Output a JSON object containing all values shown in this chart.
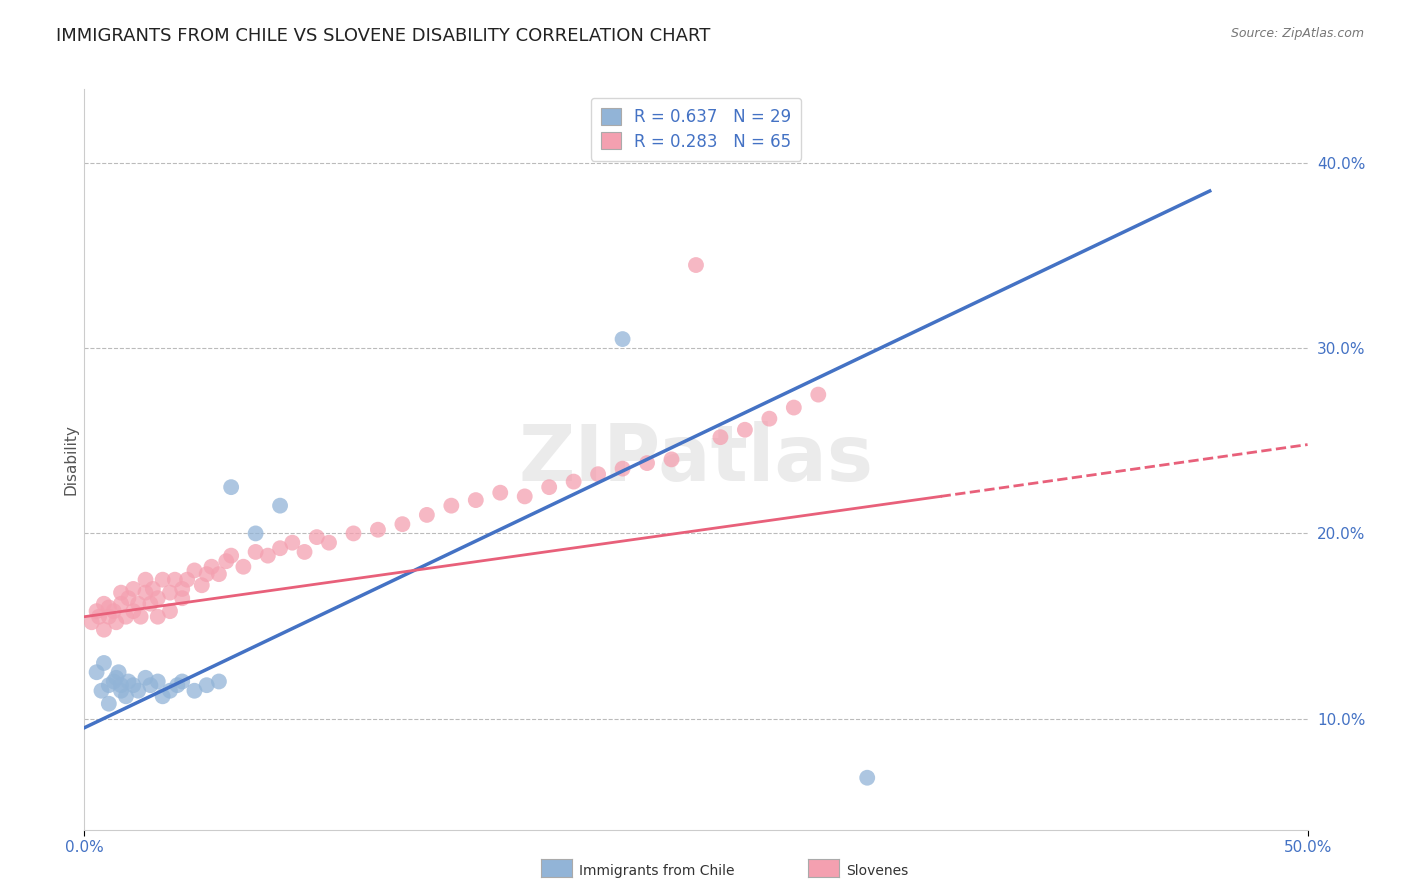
{
  "title": "IMMIGRANTS FROM CHILE VS SLOVENE DISABILITY CORRELATION CHART",
  "source": "Source: ZipAtlas.com",
  "ylabel": "Disability",
  "right_yticks": [
    "10.0%",
    "20.0%",
    "30.0%",
    "40.0%"
  ],
  "right_ytick_vals": [
    0.1,
    0.2,
    0.3,
    0.4
  ],
  "xlim": [
    0.0,
    0.5
  ],
  "ylim": [
    0.04,
    0.44
  ],
  "blue_color": "#92B4D7",
  "pink_color": "#F4A0B0",
  "blue_line_color": "#4472C4",
  "pink_line_color": "#E8607A",
  "blue_scatter_x": [
    0.005,
    0.007,
    0.008,
    0.01,
    0.01,
    0.012,
    0.013,
    0.014,
    0.015,
    0.015,
    0.017,
    0.018,
    0.02,
    0.022,
    0.025,
    0.027,
    0.03,
    0.032,
    0.035,
    0.038,
    0.04,
    0.045,
    0.05,
    0.055,
    0.06,
    0.07,
    0.08,
    0.22,
    0.32
  ],
  "blue_scatter_y": [
    0.125,
    0.115,
    0.13,
    0.118,
    0.108,
    0.12,
    0.122,
    0.125,
    0.115,
    0.118,
    0.112,
    0.12,
    0.118,
    0.115,
    0.122,
    0.118,
    0.12,
    0.112,
    0.115,
    0.118,
    0.12,
    0.115,
    0.118,
    0.12,
    0.225,
    0.2,
    0.215,
    0.305,
    0.068
  ],
  "pink_scatter_x": [
    0.003,
    0.005,
    0.006,
    0.008,
    0.008,
    0.01,
    0.01,
    0.012,
    0.013,
    0.015,
    0.015,
    0.017,
    0.018,
    0.02,
    0.02,
    0.022,
    0.023,
    0.025,
    0.025,
    0.027,
    0.028,
    0.03,
    0.03,
    0.032,
    0.035,
    0.035,
    0.037,
    0.04,
    0.04,
    0.042,
    0.045,
    0.048,
    0.05,
    0.052,
    0.055,
    0.058,
    0.06,
    0.065,
    0.07,
    0.075,
    0.08,
    0.085,
    0.09,
    0.095,
    0.1,
    0.11,
    0.12,
    0.13,
    0.14,
    0.15,
    0.16,
    0.17,
    0.18,
    0.19,
    0.2,
    0.21,
    0.22,
    0.23,
    0.24,
    0.25,
    0.26,
    0.27,
    0.28,
    0.29,
    0.3
  ],
  "pink_scatter_y": [
    0.152,
    0.158,
    0.155,
    0.162,
    0.148,
    0.16,
    0.155,
    0.158,
    0.152,
    0.162,
    0.168,
    0.155,
    0.165,
    0.158,
    0.17,
    0.162,
    0.155,
    0.168,
    0.175,
    0.162,
    0.17,
    0.155,
    0.165,
    0.175,
    0.168,
    0.158,
    0.175,
    0.165,
    0.17,
    0.175,
    0.18,
    0.172,
    0.178,
    0.182,
    0.178,
    0.185,
    0.188,
    0.182,
    0.19,
    0.188,
    0.192,
    0.195,
    0.19,
    0.198,
    0.195,
    0.2,
    0.202,
    0.205,
    0.21,
    0.215,
    0.218,
    0.222,
    0.22,
    0.225,
    0.228,
    0.232,
    0.235,
    0.238,
    0.24,
    0.345,
    0.252,
    0.256,
    0.262,
    0.268,
    0.275
  ],
  "watermark": "ZIPatlas",
  "blue_line_x0": 0.0,
  "blue_line_y0": 0.095,
  "blue_line_x1": 0.46,
  "blue_line_y1": 0.385,
  "pink_line_solid_x0": 0.0,
  "pink_line_solid_y0": 0.155,
  "pink_line_solid_x1": 0.35,
  "pink_line_solid_y1": 0.22,
  "pink_line_dash_x0": 0.35,
  "pink_line_dash_y0": 0.22,
  "pink_line_dash_x1": 0.5,
  "pink_line_dash_y1": 0.248,
  "title_fontsize": 13,
  "axis_label_fontsize": 11,
  "tick_fontsize": 11,
  "legend_fontsize": 12
}
